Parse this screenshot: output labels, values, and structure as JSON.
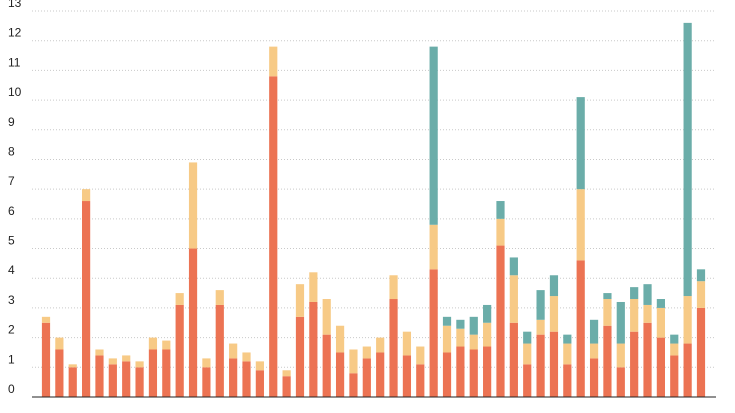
{
  "chart_data": {
    "type": "bar",
    "stacked": true,
    "title": "",
    "xlabel": "",
    "ylabel": "",
    "ylim": [
      0,
      13
    ],
    "y_ticks": [
      0,
      1,
      2,
      3,
      4,
      5,
      6,
      7,
      8,
      9,
      10,
      11,
      12,
      13
    ],
    "grid": true,
    "legend": "none",
    "colors": [
      "#ec7353",
      "#f7ca86",
      "#6bada9"
    ],
    "series": [
      {
        "values": [
          2.5,
          1.6,
          1.0,
          6.6,
          1.4,
          1.1,
          1.2,
          1.0,
          1.6,
          1.6,
          3.1,
          5.0,
          1.0,
          3.1,
          1.3,
          1.2,
          0.9,
          10.8,
          0.7,
          2.7,
          3.2,
          2.1,
          1.5,
          0.8,
          1.3,
          1.5,
          3.3,
          1.4,
          1.1,
          4.3,
          1.5,
          1.7,
          1.6,
          1.7,
          5.1,
          2.5,
          1.1,
          2.1,
          2.2,
          1.1,
          4.6,
          1.3,
          2.4,
          1.0,
          2.2,
          2.5,
          2.0,
          1.4,
          1.8,
          3.0
        ]
      },
      {
        "values": [
          0.2,
          0.4,
          0.1,
          0.4,
          0.2,
          0.2,
          0.2,
          0.2,
          0.4,
          0.3,
          0.4,
          2.9,
          0.3,
          0.5,
          0.5,
          0.3,
          0.3,
          1.0,
          0.2,
          1.1,
          1.0,
          1.2,
          0.9,
          0.8,
          0.4,
          0.5,
          0.8,
          0.8,
          0.6,
          1.5,
          0.9,
          0.6,
          0.5,
          0.8,
          0.9,
          1.6,
          0.7,
          0.5,
          1.2,
          0.7,
          2.4,
          0.5,
          0.9,
          0.8,
          1.1,
          0.6,
          1.0,
          0.4,
          1.6,
          0.9
        ]
      },
      {
        "values": [
          0,
          0,
          0,
          0,
          0,
          0,
          0,
          0,
          0,
          0,
          0,
          0,
          0,
          0,
          0,
          0,
          0,
          0,
          0,
          0,
          0,
          0,
          0,
          0,
          0,
          0,
          0,
          0,
          0,
          6.0,
          0.3,
          0.3,
          0.6,
          0.6,
          0.6,
          0.6,
          0.4,
          1.0,
          0.7,
          0.3,
          3.1,
          0.8,
          0.2,
          1.4,
          0.4,
          0.7,
          0.3,
          0.3,
          9.2,
          0.4
        ]
      }
    ]
  }
}
